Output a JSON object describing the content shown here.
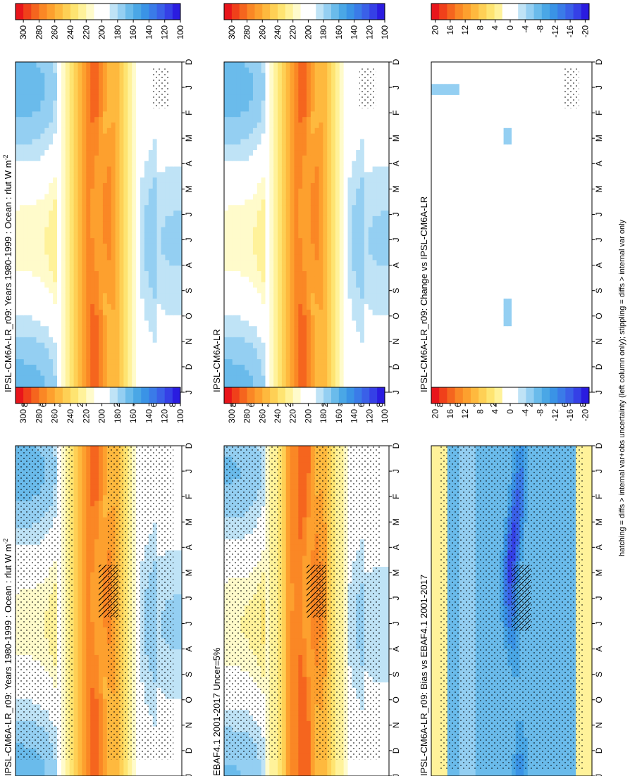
{
  "footnote": "hatching = diffs > internal var+obs uncertainty (left column only); stippling = diffs > internal var only",
  "month_labels": [
    "D",
    "J",
    "F",
    "M",
    "A",
    "M",
    "J",
    "J",
    "A",
    "S",
    "O",
    "N",
    "D",
    "J"
  ],
  "lat_labels": [
    "80",
    "60",
    "°N",
    "20",
    "0",
    "20",
    "°S",
    "60",
    "80"
  ],
  "palettes": {
    "absolute": [
      "#E8151B",
      "#F0401A",
      "#F5651E",
      "#FA8725",
      "#FDA02E",
      "#FEB93E",
      "#FED055",
      "#FEE471",
      "#FFF29A",
      "#FFFBCB",
      "#FFFFFF",
      "#FFFFFF",
      "#BFE3F6",
      "#94CFF2",
      "#6ABBEB",
      "#4AA7E6",
      "#3A93E6",
      "#3A7BE8",
      "#3A60E8",
      "#3540E6",
      "#2A1CE0"
    ],
    "difference": [
      "#E8151B",
      "#F0401A",
      "#F5651E",
      "#FA8725",
      "#FDA02E",
      "#FEB93E",
      "#FED055",
      "#FEE471",
      "#FFF29A",
      "#FFFFFF",
      "#FFFFFF",
      "#BFE3F6",
      "#94CFF2",
      "#6ABBEB",
      "#4AA7E6",
      "#3A93E6",
      "#3A7BE8",
      "#3A60E8",
      "#3540E6",
      "#2A1CE0"
    ]
  },
  "colorbars": {
    "absolute_ticks": [
      "300",
      "280",
      "260",
      "240",
      "220",
      "200",
      "180",
      "160",
      "140",
      "120",
      "100"
    ],
    "difference_ticks": [
      "20",
      "16",
      "12",
      "8",
      "4",
      "0",
      "-4",
      "-8",
      "-12",
      "-16",
      "-20"
    ]
  },
  "panels": [
    {
      "id": "model",
      "title": "IPSL-CM6A-LR_r09: Years 1980-1999 : Ocean : rlut W m",
      "title_sup": "-2",
      "kind": "absolute"
    },
    {
      "id": "obs",
      "title": "EBAF4.1 2001-2017 Uncer=5%",
      "title_sup": "",
      "kind": "absolute"
    },
    {
      "id": "bias",
      "title": "IPSL-CM6A-LR_r09: Bias vs EBAF4.1 2001-2017",
      "title_sup": "",
      "kind": "difference"
    },
    {
      "id": "model-ref",
      "title": "IPSL-CM6A-LR_r09: Years 1980-1999 : Ocean : rlut W m",
      "title_sup": "-2",
      "kind": "absolute"
    },
    {
      "id": "reference",
      "title": "IPSL-CM6A-LR",
      "title_sup": "",
      "kind": "absolute"
    },
    {
      "id": "change",
      "title": "IPSL-CM6A-LR_r09: Change vs IPSL-CM6A-LR",
      "title_sup": "",
      "kind": "difference"
    }
  ],
  "chart_data": [
    {
      "type": "heatmap",
      "panel": "model",
      "title": "IPSL-CM6A-LR_r09: Years 1980-1999 : Ocean : rlut W m-2",
      "x": "month (D..J)",
      "y": "latitude (80°N..80°S)",
      "units": "W m-2",
      "range": [
        100,
        300
      ],
      "latitude": [
        80,
        60,
        40,
        20,
        0,
        -20,
        -40,
        -60,
        -80
      ],
      "sample_values": {
        "Jan": [
          170,
          195,
          235,
          265,
          270,
          255,
          225,
          195,
          200
        ],
        "Apr": [
          180,
          200,
          240,
          270,
          275,
          265,
          235,
          200,
          200
        ],
        "Jul": [
          205,
          225,
          250,
          265,
          270,
          265,
          235,
          185,
          170
        ],
        "Oct": [
          190,
          210,
          240,
          270,
          270,
          265,
          235,
          195,
          180
        ]
      }
    },
    {
      "type": "heatmap",
      "panel": "obs",
      "title": "EBAF4.1 2001-2017 Uncer=5%",
      "units": "W m-2",
      "range": [
        100,
        300
      ],
      "sample_values": {
        "Jan": [
          175,
          200,
          240,
          270,
          270,
          260,
          230,
          200,
          200
        ],
        "Apr": [
          185,
          205,
          245,
          272,
          280,
          270,
          240,
          205,
          205
        ],
        "Jul": [
          210,
          230,
          255,
          270,
          272,
          275,
          245,
          190,
          175
        ],
        "Oct": [
          195,
          215,
          245,
          272,
          275,
          270,
          240,
          200,
          185
        ]
      }
    },
    {
      "type": "heatmap",
      "panel": "bias",
      "title": "IPSL-CM6A-LR_r09: Bias vs EBAF4.1 2001-2017",
      "units": "W m-2",
      "range": [
        -20,
        20
      ],
      "sample_values": {
        "Jan": [
          2,
          -4,
          -6,
          -8,
          -12,
          -6,
          -6,
          -4,
          4
        ],
        "Apr": [
          -2,
          -6,
          -8,
          -8,
          -16,
          -10,
          -8,
          -6,
          4
        ],
        "Jul": [
          -4,
          -6,
          -8,
          -10,
          -8,
          -10,
          -10,
          -6,
          2
        ],
        "Oct": [
          -2,
          -4,
          -6,
          -6,
          -8,
          -8,
          -6,
          -4,
          2
        ]
      }
    },
    {
      "type": "heatmap",
      "panel": "model-ref",
      "title": "IPSL-CM6A-LR_r09: Years 1980-1999 : Ocean : rlut W m-2",
      "units": "W m-2",
      "range": [
        100,
        300
      ]
    },
    {
      "type": "heatmap",
      "panel": "reference",
      "title": "IPSL-CM6A-LR",
      "units": "W m-2",
      "range": [
        100,
        300
      ]
    },
    {
      "type": "heatmap",
      "panel": "change",
      "title": "IPSL-CM6A-LR_r09: Change vs IPSL-CM6A-LR",
      "units": "W m-2",
      "range": [
        -20,
        20
      ],
      "sample_values": {
        "Jan": [
          0,
          0,
          0,
          0,
          0,
          0,
          0,
          0,
          0
        ],
        "Apr": [
          0,
          0,
          0,
          0,
          -4,
          0,
          0,
          0,
          0
        ],
        "Jul": [
          0,
          0,
          0,
          0,
          0,
          0,
          0,
          0,
          0
        ],
        "Oct": [
          0,
          0,
          0,
          0,
          -4,
          0,
          0,
          0,
          0
        ]
      }
    }
  ]
}
